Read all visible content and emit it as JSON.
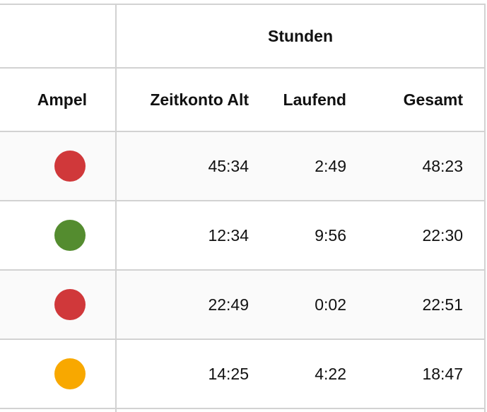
{
  "table": {
    "group_header": "Stunden",
    "columns": [
      "Ampel",
      "Zeitkonto Alt",
      "Laufend",
      "Gesamt"
    ],
    "rows": [
      {
        "color": "#d0383a",
        "cells": [
          "45:34",
          "2:49",
          "48:23"
        ]
      },
      {
        "color": "#548c2f",
        "cells": [
          "12:34",
          "9:56",
          "22:30"
        ]
      },
      {
        "color": "#d0383a",
        "cells": [
          "22:49",
          "0:02",
          "22:51"
        ]
      },
      {
        "color": "#f8a800",
        "cells": [
          "14:25",
          "4:22",
          "18:47"
        ]
      }
    ]
  }
}
